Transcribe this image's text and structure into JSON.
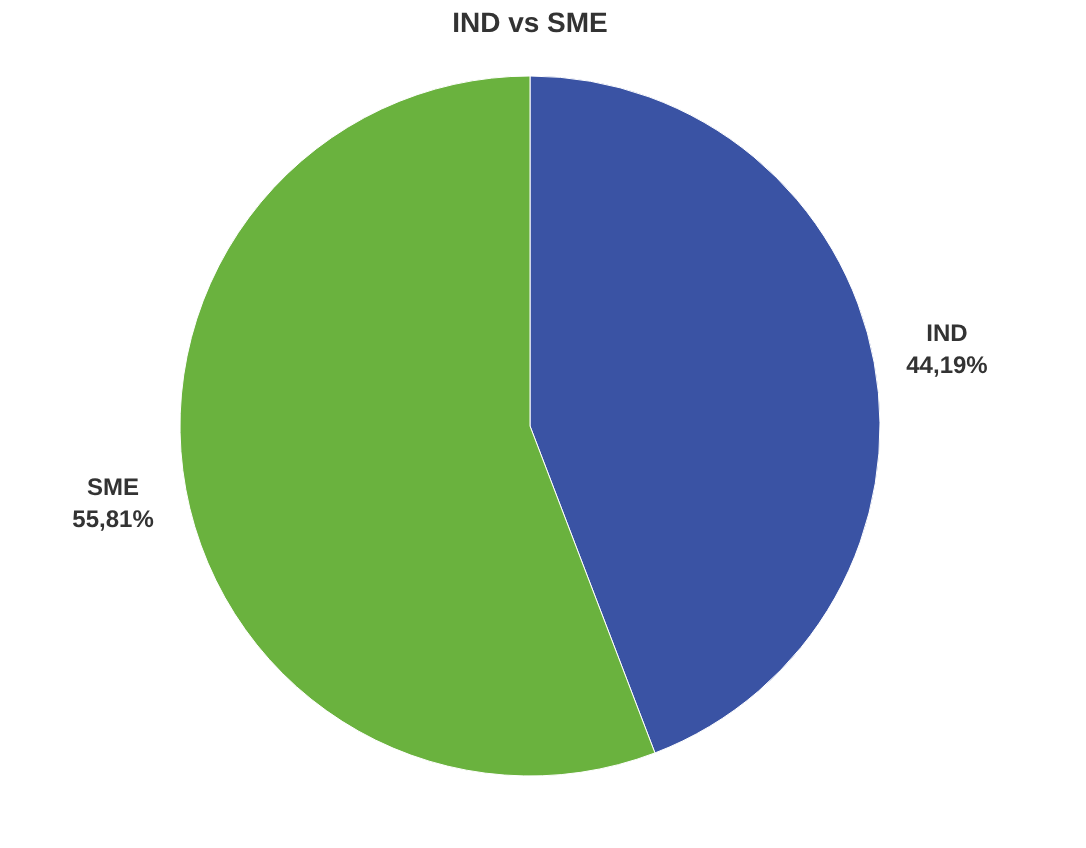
{
  "chart_data": {
    "type": "pie",
    "title": "IND vs SME",
    "categories": [
      "IND",
      "SME"
    ],
    "values": [
      44.19,
      55.81
    ],
    "value_labels": [
      "44,19%",
      "55,81%"
    ],
    "colors": [
      "#3a53a4",
      "#6ab23e"
    ],
    "legend": false
  }
}
